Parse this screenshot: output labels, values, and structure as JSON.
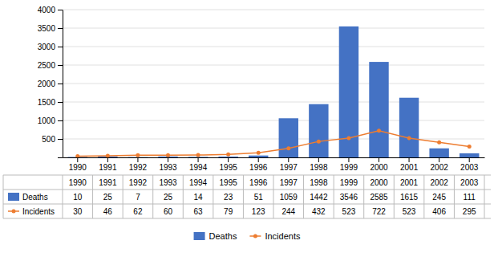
{
  "chart_data": {
    "type": "bar",
    "categories": [
      "1990",
      "1991",
      "1992",
      "1993",
      "1994",
      "1995",
      "1996",
      "1997",
      "1998",
      "1999",
      "2000",
      "2001",
      "2002",
      "2003"
    ],
    "series": [
      {
        "name": "Deaths",
        "type": "bar",
        "color": "#4472C4",
        "values": [
          10,
          25,
          7,
          25,
          14,
          23,
          51,
          1059,
          1442,
          3546,
          2585,
          1615,
          245,
          111
        ]
      },
      {
        "name": "Incidents",
        "type": "line",
        "color": "#ED7D31",
        "marker": "circle",
        "values": [
          30,
          46,
          62,
          60,
          63,
          79,
          123,
          244,
          432,
          523,
          722,
          523,
          406,
          295
        ]
      }
    ],
    "ylim": [
      0,
      4000
    ],
    "yticks": [
      {
        "value": 0,
        "label": ""
      },
      500,
      1000,
      1500,
      2000,
      2500,
      3000,
      3500,
      4000
    ],
    "grid": true,
    "data_labels": true,
    "legend": "bottom"
  }
}
